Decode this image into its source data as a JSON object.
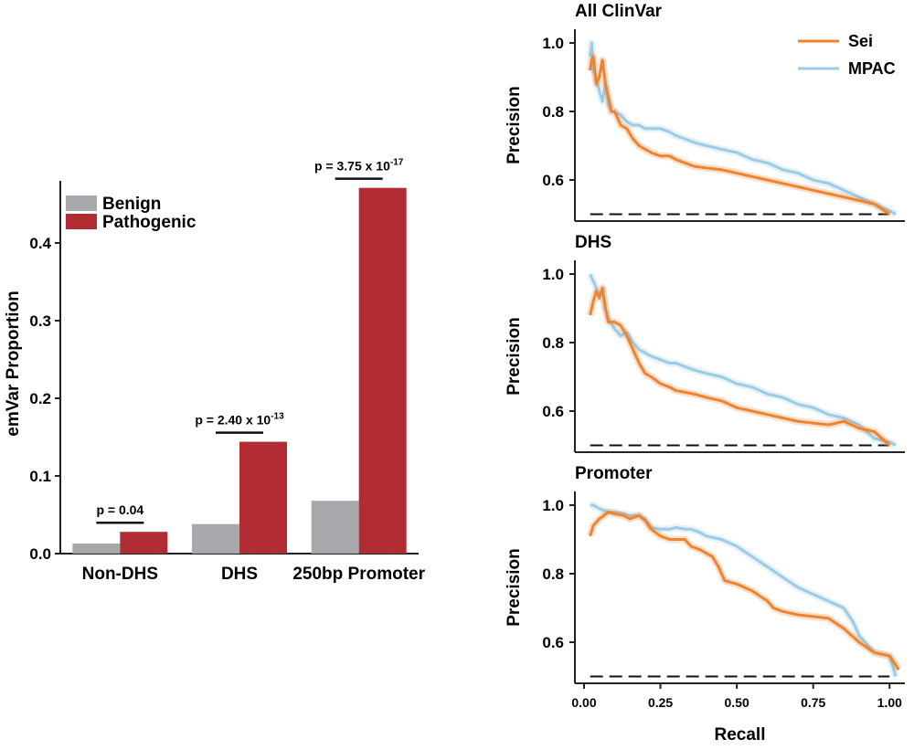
{
  "colors": {
    "benign": "#a7a8ab",
    "pathogenic": "#b22d33",
    "sei": "#ec8431",
    "mpac": "#9ccbe5",
    "axis": "#222222"
  },
  "chart_data": [
    {
      "type": "bar",
      "id": "proportion",
      "ylabel": "emVar Proportion",
      "xlabel": "",
      "ylim": [
        0,
        0.48
      ],
      "yticks": [
        "0.0",
        "0.1",
        "0.2",
        "0.3",
        "0.4"
      ],
      "categories": [
        "Non-DHS",
        "DHS",
        "250bp Promoter"
      ],
      "series": [
        {
          "name": "Benign",
          "color_key": "benign",
          "values": [
            0.013,
            0.038,
            0.068
          ]
        },
        {
          "name": "Pathogenic",
          "color_key": "pathogenic",
          "values": [
            0.028,
            0.144,
            0.471
          ]
        }
      ],
      "legend_position": "top-left",
      "annotations": [
        {
          "base": "p = 0.04",
          "exp": ""
        },
        {
          "base": "p = 2.40 x 10",
          "exp": "-13"
        },
        {
          "base": "p = 3.75 x 10",
          "exp": "-17"
        }
      ]
    },
    {
      "type": "line",
      "id": "pr-allclinvar",
      "title": "All ClinVar",
      "ylabel": "Precision",
      "xlabel": "",
      "xlim": [
        0,
        1.05
      ],
      "ylim": [
        0.48,
        1.04
      ],
      "yticks": [
        "0.6",
        "0.8",
        "1.0"
      ],
      "baseline": 0.5,
      "legend": [
        "Sei",
        "MPAC"
      ],
      "series": [
        {
          "name": "Sei",
          "color_key": "sei",
          "x": [
            0.02,
            0.025,
            0.03,
            0.04,
            0.05,
            0.06,
            0.07,
            0.08,
            0.09,
            0.1,
            0.12,
            0.14,
            0.16,
            0.18,
            0.2,
            0.22,
            0.25,
            0.28,
            0.3,
            0.33,
            0.36,
            0.4,
            0.45,
            0.5,
            0.55,
            0.6,
            0.65,
            0.7,
            0.75,
            0.8,
            0.85,
            0.9,
            0.95,
            1.0
          ],
          "y": [
            0.92,
            0.95,
            0.96,
            0.88,
            0.9,
            0.95,
            0.88,
            0.84,
            0.8,
            0.8,
            0.76,
            0.75,
            0.72,
            0.7,
            0.69,
            0.68,
            0.67,
            0.67,
            0.66,
            0.65,
            0.64,
            0.635,
            0.63,
            0.62,
            0.61,
            0.6,
            0.59,
            0.58,
            0.57,
            0.56,
            0.55,
            0.54,
            0.53,
            0.5
          ]
        },
        {
          "name": "MPAC",
          "color_key": "mpac",
          "x": [
            0.02,
            0.025,
            0.03,
            0.04,
            0.05,
            0.06,
            0.07,
            0.08,
            0.09,
            0.1,
            0.12,
            0.14,
            0.16,
            0.18,
            0.2,
            0.22,
            0.25,
            0.28,
            0.3,
            0.33,
            0.36,
            0.4,
            0.45,
            0.5,
            0.55,
            0.6,
            0.65,
            0.7,
            0.75,
            0.8,
            0.85,
            0.9,
            0.95,
            1.0,
            1.02
          ],
          "y": [
            0.96,
            1.0,
            0.92,
            0.9,
            0.86,
            0.83,
            0.88,
            0.82,
            0.8,
            0.8,
            0.79,
            0.77,
            0.76,
            0.76,
            0.75,
            0.75,
            0.75,
            0.74,
            0.73,
            0.72,
            0.71,
            0.7,
            0.69,
            0.68,
            0.66,
            0.65,
            0.63,
            0.62,
            0.6,
            0.59,
            0.57,
            0.55,
            0.53,
            0.51,
            0.5
          ]
        }
      ]
    },
    {
      "type": "line",
      "id": "pr-dhs",
      "title": "DHS",
      "ylabel": "Precision",
      "xlabel": "",
      "xlim": [
        0,
        1.05
      ],
      "ylim": [
        0.48,
        1.04
      ],
      "yticks": [
        "0.6",
        "0.8",
        "1.0"
      ],
      "baseline": 0.5,
      "series": [
        {
          "name": "Sei",
          "color_key": "sei",
          "x": [
            0.02,
            0.03,
            0.04,
            0.05,
            0.06,
            0.07,
            0.08,
            0.1,
            0.12,
            0.14,
            0.16,
            0.18,
            0.2,
            0.22,
            0.25,
            0.28,
            0.3,
            0.33,
            0.36,
            0.4,
            0.45,
            0.5,
            0.55,
            0.6,
            0.65,
            0.7,
            0.75,
            0.8,
            0.85,
            0.9,
            0.95,
            1.0
          ],
          "y": [
            0.88,
            0.92,
            0.95,
            0.93,
            0.96,
            0.9,
            0.86,
            0.86,
            0.85,
            0.82,
            0.78,
            0.74,
            0.71,
            0.7,
            0.68,
            0.67,
            0.66,
            0.655,
            0.65,
            0.64,
            0.63,
            0.61,
            0.6,
            0.59,
            0.58,
            0.57,
            0.565,
            0.56,
            0.57,
            0.55,
            0.54,
            0.5
          ]
        },
        {
          "name": "MPAC",
          "color_key": "mpac",
          "x": [
            0.02,
            0.03,
            0.04,
            0.05,
            0.06,
            0.07,
            0.08,
            0.1,
            0.12,
            0.14,
            0.16,
            0.18,
            0.2,
            0.22,
            0.25,
            0.28,
            0.3,
            0.33,
            0.36,
            0.4,
            0.45,
            0.5,
            0.55,
            0.6,
            0.65,
            0.7,
            0.75,
            0.8,
            0.85,
            0.9,
            0.95,
            1.0,
            1.02
          ],
          "y": [
            1.0,
            0.98,
            0.96,
            0.94,
            0.95,
            0.9,
            0.87,
            0.84,
            0.82,
            0.83,
            0.8,
            0.78,
            0.77,
            0.76,
            0.75,
            0.74,
            0.74,
            0.73,
            0.72,
            0.71,
            0.7,
            0.68,
            0.67,
            0.65,
            0.64,
            0.62,
            0.61,
            0.59,
            0.58,
            0.56,
            0.52,
            0.51,
            0.5
          ]
        }
      ]
    },
    {
      "type": "line",
      "id": "pr-promoter",
      "title": "Promoter",
      "ylabel": "Precision",
      "xlabel": "Recall",
      "xlim": [
        0,
        1.05
      ],
      "ylim": [
        0.48,
        1.04
      ],
      "yticks": [
        "0.6",
        "0.8",
        "1.0"
      ],
      "xticks": [
        "0.00",
        "0.25",
        "0.50",
        "0.75",
        "1.00"
      ],
      "baseline": 0.5,
      "series": [
        {
          "name": "Sei",
          "color_key": "sei",
          "x": [
            0.02,
            0.03,
            0.05,
            0.08,
            0.1,
            0.13,
            0.15,
            0.18,
            0.2,
            0.22,
            0.25,
            0.28,
            0.3,
            0.33,
            0.35,
            0.38,
            0.4,
            0.42,
            0.44,
            0.46,
            0.5,
            0.55,
            0.6,
            0.62,
            0.65,
            0.7,
            0.75,
            0.8,
            0.85,
            0.9,
            0.95,
            1.0,
            1.03
          ],
          "y": [
            0.91,
            0.94,
            0.96,
            0.98,
            0.975,
            0.97,
            0.96,
            0.97,
            0.955,
            0.93,
            0.91,
            0.9,
            0.9,
            0.9,
            0.88,
            0.87,
            0.86,
            0.85,
            0.82,
            0.78,
            0.77,
            0.75,
            0.72,
            0.7,
            0.69,
            0.68,
            0.675,
            0.67,
            0.64,
            0.6,
            0.57,
            0.56,
            0.52
          ]
        },
        {
          "name": "MPAC",
          "color_key": "mpac",
          "x": [
            0.02,
            0.03,
            0.05,
            0.08,
            0.1,
            0.13,
            0.15,
            0.18,
            0.2,
            0.22,
            0.25,
            0.28,
            0.3,
            0.33,
            0.35,
            0.38,
            0.4,
            0.45,
            0.5,
            0.55,
            0.6,
            0.65,
            0.7,
            0.75,
            0.8,
            0.85,
            0.88,
            0.9,
            0.95,
            1.0,
            1.02
          ],
          "y": [
            1.0,
            1.0,
            0.99,
            0.98,
            0.98,
            0.975,
            0.97,
            0.97,
            0.96,
            0.935,
            0.93,
            0.93,
            0.935,
            0.93,
            0.93,
            0.92,
            0.91,
            0.9,
            0.88,
            0.85,
            0.82,
            0.79,
            0.76,
            0.74,
            0.72,
            0.7,
            0.66,
            0.62,
            0.57,
            0.56,
            0.5
          ]
        }
      ]
    }
  ]
}
